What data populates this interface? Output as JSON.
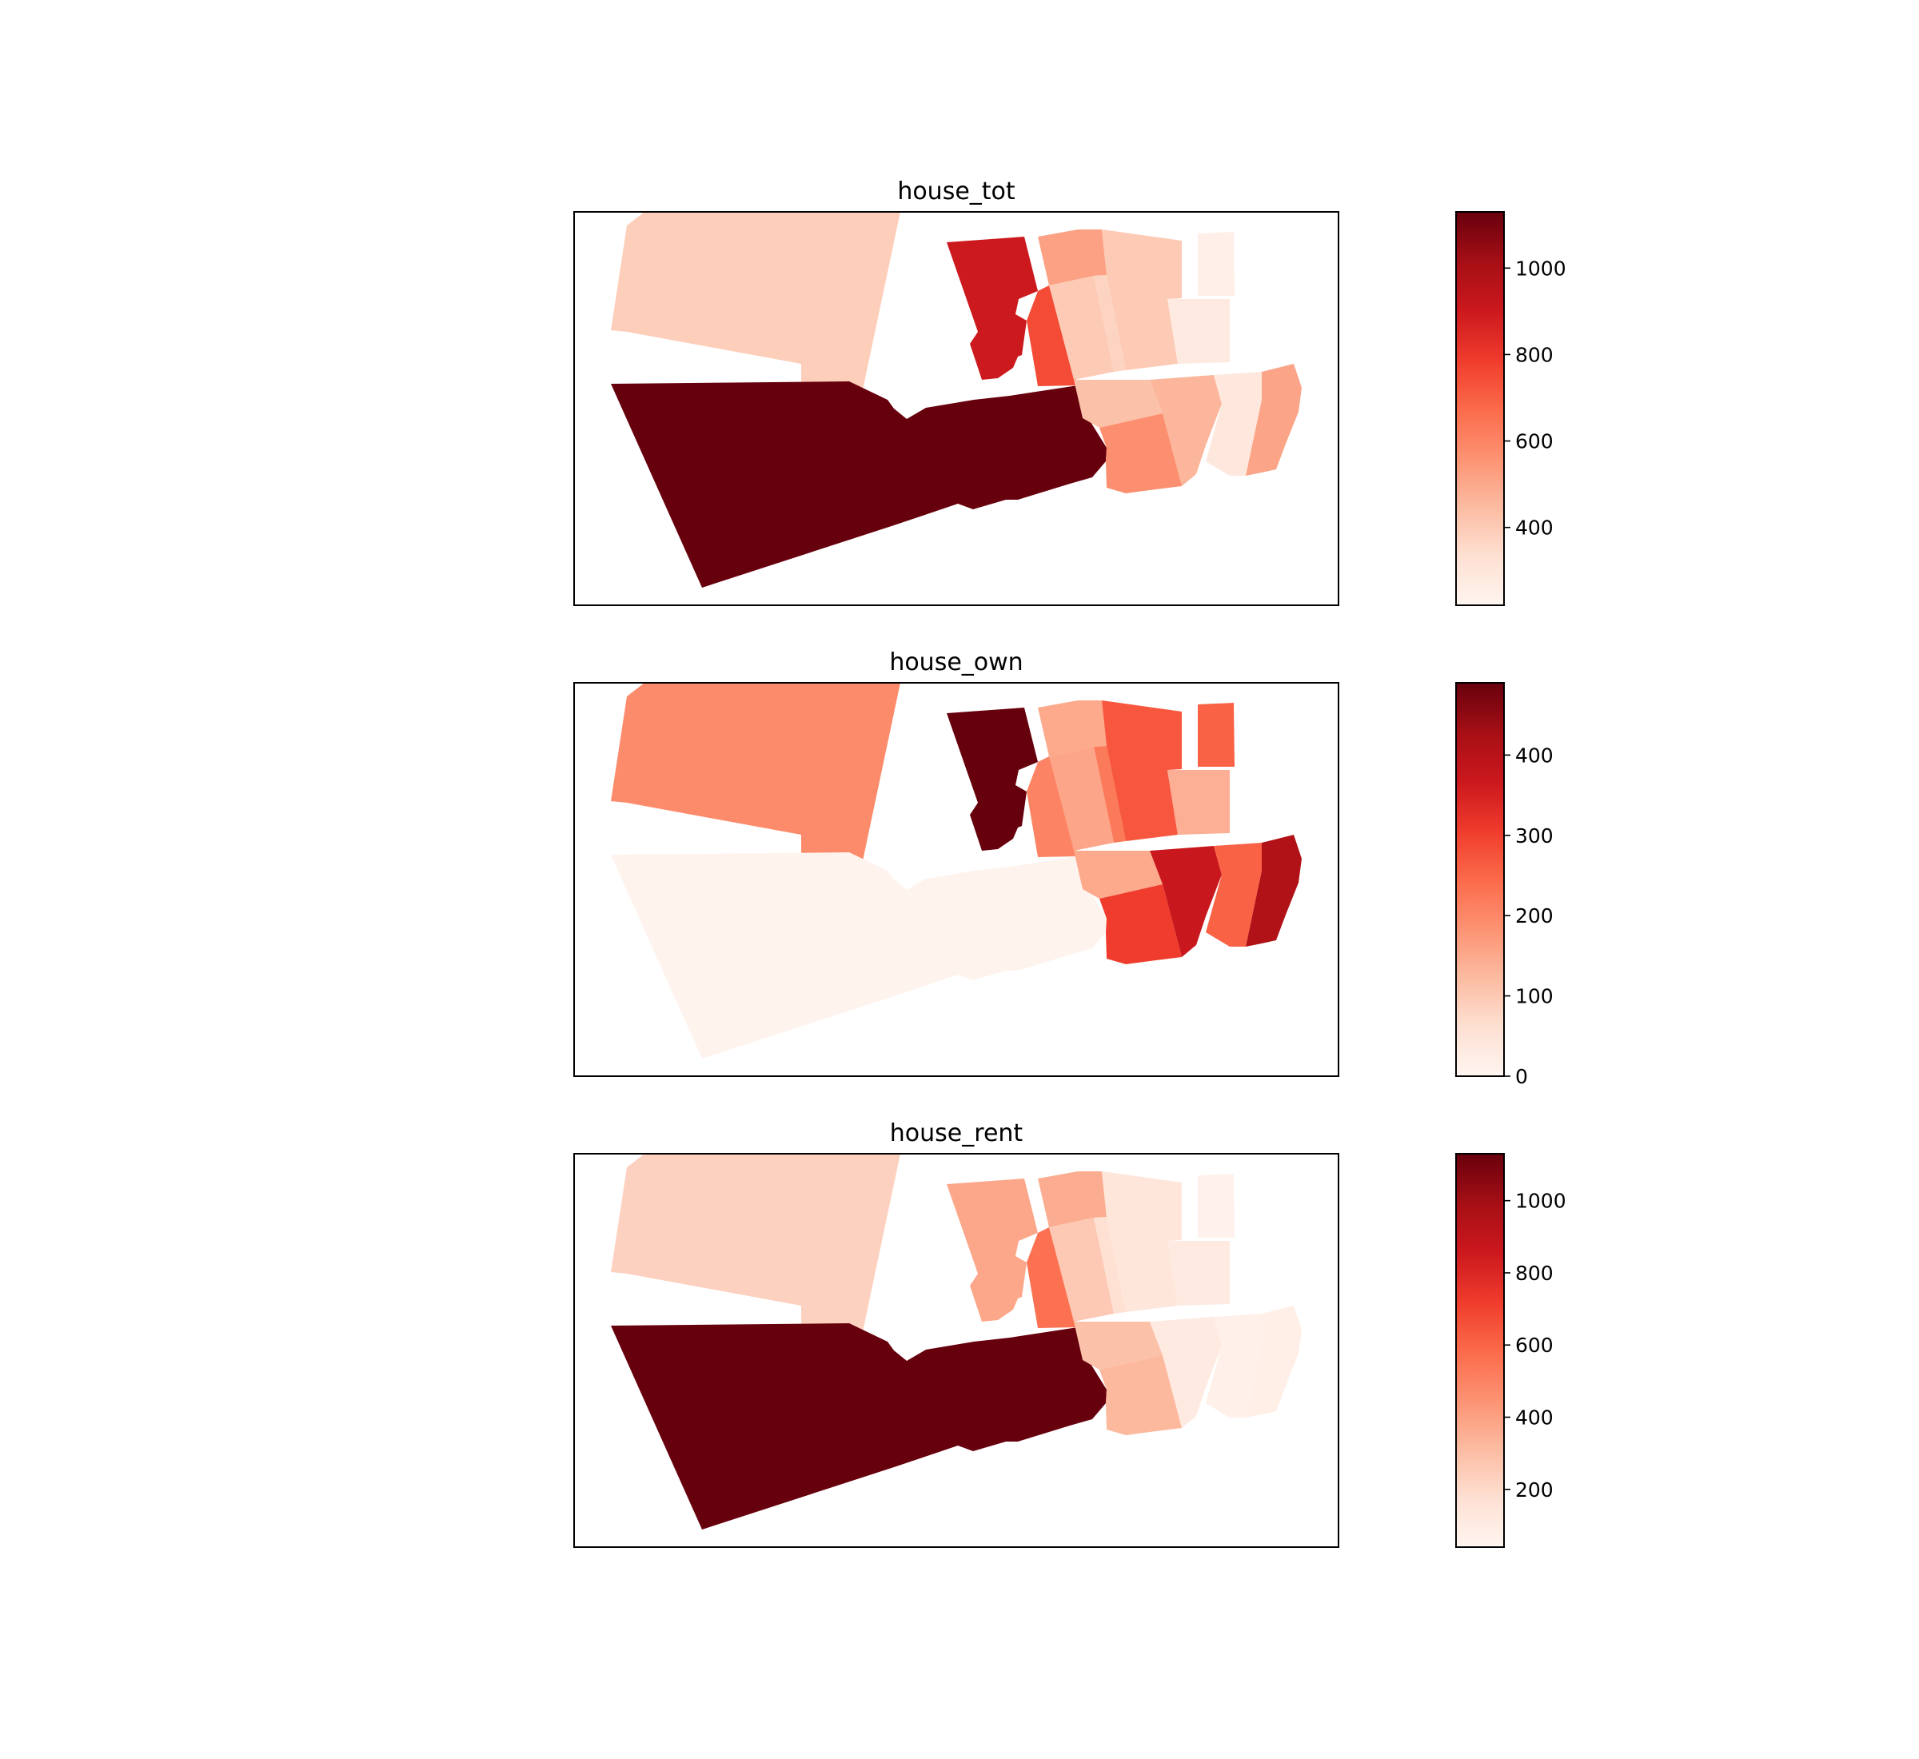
{
  "colormap": {
    "name": "Reds",
    "stops": [
      "#fff5f0",
      "#fee0d2",
      "#fcbba1",
      "#fc9272",
      "#fb6a4a",
      "#ef3b2c",
      "#cb181d",
      "#a50f15",
      "#67000d"
    ]
  },
  "panels": [
    {
      "title": "house_tot",
      "scale": {
        "min": 220,
        "max": 1130,
        "ticks": [
          400,
          600,
          800,
          1000
        ],
        "tick_labels": [
          "400",
          "600",
          "800",
          "1000"
        ]
      },
      "regions": [
        {
          "id": "west_upper",
          "value": 390
        },
        {
          "id": "south_big",
          "value": 1130
        },
        {
          "id": "north_mid",
          "value": 900
        },
        {
          "id": "strip_mid",
          "value": 750
        },
        {
          "id": "ne_a",
          "value": 520
        },
        {
          "id": "ne_b",
          "value": 400
        },
        {
          "id": "ne_c",
          "value": 370
        },
        {
          "id": "ne_d",
          "value": 400
        },
        {
          "id": "ne_e",
          "value": 280
        },
        {
          "id": "ne_f",
          "value": 250
        },
        {
          "id": "east_a",
          "value": 430
        },
        {
          "id": "east_b",
          "value": 460
        },
        {
          "id": "east_c",
          "value": 290
        },
        {
          "id": "east_d",
          "value": 510
        },
        {
          "id": "se_a",
          "value": 570
        }
      ]
    },
    {
      "title": "house_own",
      "scale": {
        "min": 0,
        "max": 490,
        "ticks": [
          0,
          100,
          200,
          300,
          400
        ],
        "tick_labels": [
          "0",
          "100",
          "200",
          "300",
          "400"
        ]
      },
      "regions": [
        {
          "id": "west_upper",
          "value": 195
        },
        {
          "id": "south_big",
          "value": 5
        },
        {
          "id": "north_mid",
          "value": 490
        },
        {
          "id": "strip_mid",
          "value": 205
        },
        {
          "id": "ne_a",
          "value": 150
        },
        {
          "id": "ne_b",
          "value": 155
        },
        {
          "id": "ne_c",
          "value": 220
        },
        {
          "id": "ne_d",
          "value": 270
        },
        {
          "id": "ne_e",
          "value": 140
        },
        {
          "id": "ne_f",
          "value": 255
        },
        {
          "id": "east_a",
          "value": 150
        },
        {
          "id": "east_b",
          "value": 370
        },
        {
          "id": "east_c",
          "value": 255
        },
        {
          "id": "east_d",
          "value": 410
        },
        {
          "id": "se_a",
          "value": 305
        }
      ]
    },
    {
      "title": "house_rent",
      "scale": {
        "min": 40,
        "max": 1130,
        "ticks": [
          200,
          400,
          600,
          800,
          1000
        ],
        "tick_labels": [
          "200",
          "400",
          "600",
          "800",
          "1000"
        ]
      },
      "regions": [
        {
          "id": "west_upper",
          "value": 230
        },
        {
          "id": "south_big",
          "value": 1130
        },
        {
          "id": "north_mid",
          "value": 380
        },
        {
          "id": "strip_mid",
          "value": 560
        },
        {
          "id": "ne_a",
          "value": 360
        },
        {
          "id": "ne_b",
          "value": 260
        },
        {
          "id": "ne_c",
          "value": 170
        },
        {
          "id": "ne_d",
          "value": 140
        },
        {
          "id": "ne_e",
          "value": 110
        },
        {
          "id": "ne_f",
          "value": 60
        },
        {
          "id": "east_a",
          "value": 290
        },
        {
          "id": "east_b",
          "value": 110
        },
        {
          "id": "east_c",
          "value": 70
        },
        {
          "id": "east_d",
          "value": 80
        },
        {
          "id": "se_a",
          "value": 320
        }
      ]
    }
  ]
}
